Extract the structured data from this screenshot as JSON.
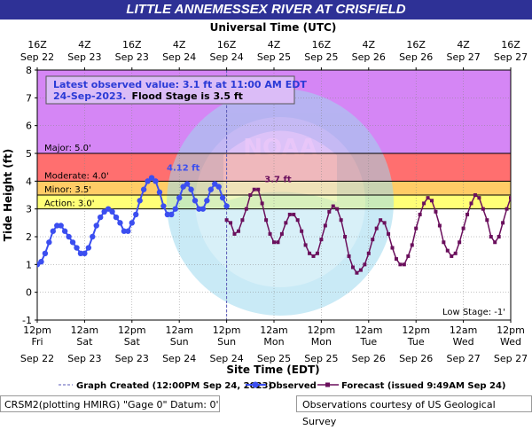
{
  "title": "LITTLE ANNEMESSEX RIVER AT CRISFIELD",
  "top_axis_title": "Universal Time (UTC)",
  "bottom_axis_title": "Site Time (EDT)",
  "y_axis_title": "Tide Height (ft)",
  "info_box": {
    "line1": "Latest observed value: 3.1  ft at 11:00 AM EDT",
    "line2_date": "24-Sep-2023.",
    "line2_flood": "Flood Stage is 3.5 ft"
  },
  "legend": {
    "graph_created": "Graph Created (12:00PM Sep 24, 2023)",
    "observed": "Observed",
    "forecast": "Forecast (issued 9:49AM Sep 24)"
  },
  "footer": {
    "left": "CRSM2(plotting HMIRG) \"Gage 0\" Datum:  0'",
    "right": "Observations courtesy of US Geological Survey"
  },
  "watermark_text": "NATIONAL OCEANIC AND ATMOSPHERIC ADMINISTRATION · U.S. DEPARTMENT OF COMMERCE · NOAA",
  "colors": {
    "title_bg": "#2e3196",
    "observed": "#3b4ef0",
    "forecast": "#6a0f5c",
    "major": "#d586f5",
    "moderate": "#ff6f6f",
    "minor": "#ffcc66",
    "action": "#ffff77"
  },
  "chart_data": {
    "type": "line",
    "ylabel": "Tide Height (ft)",
    "xlabel": "Site Time (EDT)",
    "ylim": [
      -1,
      8
    ],
    "yticks": [
      -1,
      0,
      1,
      2,
      3,
      4,
      5,
      6,
      7,
      8
    ],
    "x_range_hours_since_sep22_12pm": [
      0,
      120
    ],
    "top_ticks": [
      {
        "t1": "16Z",
        "t2": "Sep 22"
      },
      {
        "t1": "4Z",
        "t2": "Sep 23"
      },
      {
        "t1": "16Z",
        "t2": "Sep 23"
      },
      {
        "t1": "4Z",
        "t2": "Sep 24"
      },
      {
        "t1": "16Z",
        "t2": "Sep 24"
      },
      {
        "t1": "4Z",
        "t2": "Sep 25"
      },
      {
        "t1": "16Z",
        "t2": "Sep 25"
      },
      {
        "t1": "4Z",
        "t2": "Sep 26"
      },
      {
        "t1": "16Z",
        "t2": "Sep 26"
      },
      {
        "t1": "4Z",
        "t2": "Sep 27"
      },
      {
        "t1": "16Z",
        "t2": "Sep 27"
      }
    ],
    "bottom_ticks": [
      {
        "t1": "12pm",
        "t2": "Fri",
        "t3": "Sep 22"
      },
      {
        "t1": "12am",
        "t2": "Sat",
        "t3": "Sep 23"
      },
      {
        "t1": "12pm",
        "t2": "Sat",
        "t3": "Sep 23"
      },
      {
        "t1": "12am",
        "t2": "Sun",
        "t3": "Sep 24"
      },
      {
        "t1": "12pm",
        "t2": "Sun",
        "t3": "Sep 24"
      },
      {
        "t1": "12am",
        "t2": "Mon",
        "t3": "Sep 25"
      },
      {
        "t1": "12pm",
        "t2": "Mon",
        "t3": "Sep 25"
      },
      {
        "t1": "12am",
        "t2": "Tue",
        "t3": "Sep 26"
      },
      {
        "t1": "12pm",
        "t2": "Tue",
        "t3": "Sep 26"
      },
      {
        "t1": "12am",
        "t2": "Wed",
        "t3": "Sep 27"
      },
      {
        "t1": "12pm",
        "t2": "Wed",
        "t3": "Sep 27"
      }
    ],
    "flood_categories": [
      {
        "name": "Major: 5.0'",
        "from": 5.0,
        "to": 8.0,
        "color": "#d586f5"
      },
      {
        "name": "Moderate: 4.0'",
        "from": 4.0,
        "to": 5.0,
        "color": "#ff6f6f"
      },
      {
        "name": "Minor: 3.5'",
        "from": 3.5,
        "to": 4.0,
        "color": "#ffcc66"
      },
      {
        "name": "Action: 3.0'",
        "from": 3.0,
        "to": 3.5,
        "color": "#ffff77"
      }
    ],
    "low_stage_label": "Low Stage: -1'",
    "peak_labels": [
      {
        "text": "4.12 ft",
        "x": 37,
        "y": 4.12,
        "series": "Observed"
      },
      {
        "text": "3.7 ft",
        "x": 61,
        "y": 3.7,
        "series": "Forecast"
      }
    ],
    "series": [
      {
        "name": "Observed",
        "x": [
          0,
          1,
          2,
          3,
          4,
          5,
          6,
          7,
          8,
          9,
          10,
          11,
          12,
          13,
          14,
          15,
          16,
          17,
          18,
          19,
          20,
          21,
          22,
          23,
          24,
          25,
          26,
          27,
          28,
          29,
          30,
          31,
          32,
          33,
          34,
          35,
          36,
          37,
          38,
          39,
          40,
          41,
          42,
          43,
          44,
          45,
          46,
          47,
          48
        ],
        "y": [
          1.0,
          1.1,
          1.4,
          1.8,
          2.2,
          2.4,
          2.4,
          2.2,
          2.0,
          1.8,
          1.6,
          1.4,
          1.4,
          1.6,
          2.0,
          2.4,
          2.7,
          2.9,
          3.0,
          2.9,
          2.7,
          2.5,
          2.2,
          2.2,
          2.5,
          2.8,
          3.3,
          3.7,
          4.0,
          4.12,
          4.0,
          3.6,
          3.1,
          2.8,
          2.8,
          3.0,
          3.4,
          3.8,
          3.9,
          3.7,
          3.3,
          3.0,
          3.0,
          3.3,
          3.7,
          3.9,
          3.8,
          3.4,
          3.1
        ]
      },
      {
        "name": "Forecast",
        "x": [
          48,
          49,
          50,
          51,
          52,
          53,
          54,
          55,
          56,
          57,
          58,
          59,
          60,
          61,
          62,
          63,
          64,
          65,
          66,
          67,
          68,
          69,
          70,
          71,
          72,
          73,
          74,
          75,
          76,
          77,
          78,
          79,
          80,
          81,
          82,
          83,
          84,
          85,
          86,
          87,
          88,
          89,
          90,
          91,
          92,
          93,
          94,
          95,
          96,
          97,
          98,
          99,
          100,
          101,
          102,
          103,
          104,
          105,
          106,
          107,
          108,
          109,
          110,
          111,
          112,
          113,
          114,
          115,
          116,
          117,
          118,
          119,
          120
        ],
        "y": [
          2.6,
          2.5,
          2.1,
          2.2,
          2.6,
          3.0,
          3.5,
          3.7,
          3.7,
          3.2,
          2.6,
          2.1,
          1.8,
          1.8,
          2.1,
          2.5,
          2.8,
          2.8,
          2.6,
          2.2,
          1.7,
          1.4,
          1.3,
          1.4,
          1.9,
          2.4,
          2.9,
          3.1,
          3.0,
          2.6,
          2.0,
          1.3,
          0.9,
          0.7,
          0.8,
          1.0,
          1.4,
          1.9,
          2.3,
          2.6,
          2.5,
          2.1,
          1.6,
          1.2,
          1.0,
          1.0,
          1.3,
          1.7,
          2.3,
          2.8,
          3.2,
          3.4,
          3.3,
          2.9,
          2.4,
          1.8,
          1.5,
          1.3,
          1.4,
          1.8,
          2.3,
          2.8,
          3.2,
          3.5,
          3.4,
          3.0,
          2.6,
          2.0,
          1.8,
          2.0,
          2.5,
          3.0,
          3.4
        ]
      }
    ],
    "graph_created_x": 48
  }
}
